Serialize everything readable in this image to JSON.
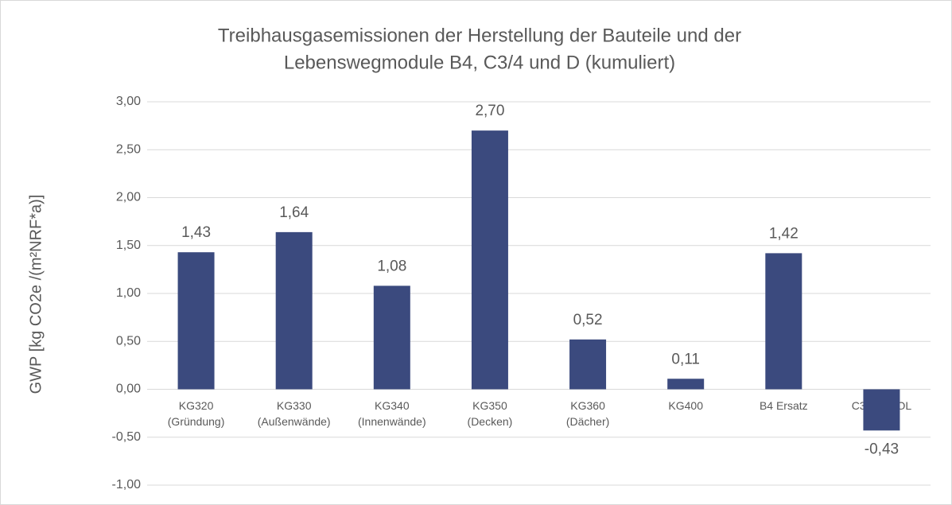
{
  "chart_data": {
    "type": "bar",
    "title": [
      "Treibhausgasemissionen der Herstellung der Bauteile und der",
      "Lebenswegmodule B4, C3/4 und D (kumuliert)"
    ],
    "y_axis_label": "GWP [kg CO2e /(m²NRF*a)]",
    "categories": [
      [
        "KG320",
        "(Gründung)"
      ],
      [
        "KG330",
        "(Außenwände)"
      ],
      [
        "KG340",
        "(Innenwände)"
      ],
      [
        "KG350",
        "(Decken)"
      ],
      [
        "KG360",
        "(Dächer)"
      ],
      [
        "KG400"
      ],
      [
        "B4 Ersatz"
      ],
      [
        "C3/4 D EOL"
      ]
    ],
    "values": [
      1.43,
      1.64,
      1.08,
      2.7,
      0.52,
      0.11,
      1.42,
      -0.43
    ],
    "value_labels": [
      "1,43",
      "1,64",
      "1,08",
      "2,70",
      "0,52",
      "0,11",
      "1,42",
      "-0,43"
    ],
    "color": "#3b4a7e",
    "ylim": [
      -1,
      3
    ],
    "yticks": [
      {
        "value": -1,
        "label": "-1,00"
      },
      {
        "value": -0.5,
        "label": "-0,50"
      },
      {
        "value": 0,
        "label": "0,00"
      },
      {
        "value": 0.5,
        "label": "0,50"
      },
      {
        "value": 1,
        "label": "1,00"
      },
      {
        "value": 1.5,
        "label": "1,50"
      },
      {
        "value": 2,
        "label": "2,00"
      },
      {
        "value": 2.5,
        "label": "2,50"
      },
      {
        "value": 3,
        "label": "3,00"
      }
    ],
    "grid": true
  }
}
